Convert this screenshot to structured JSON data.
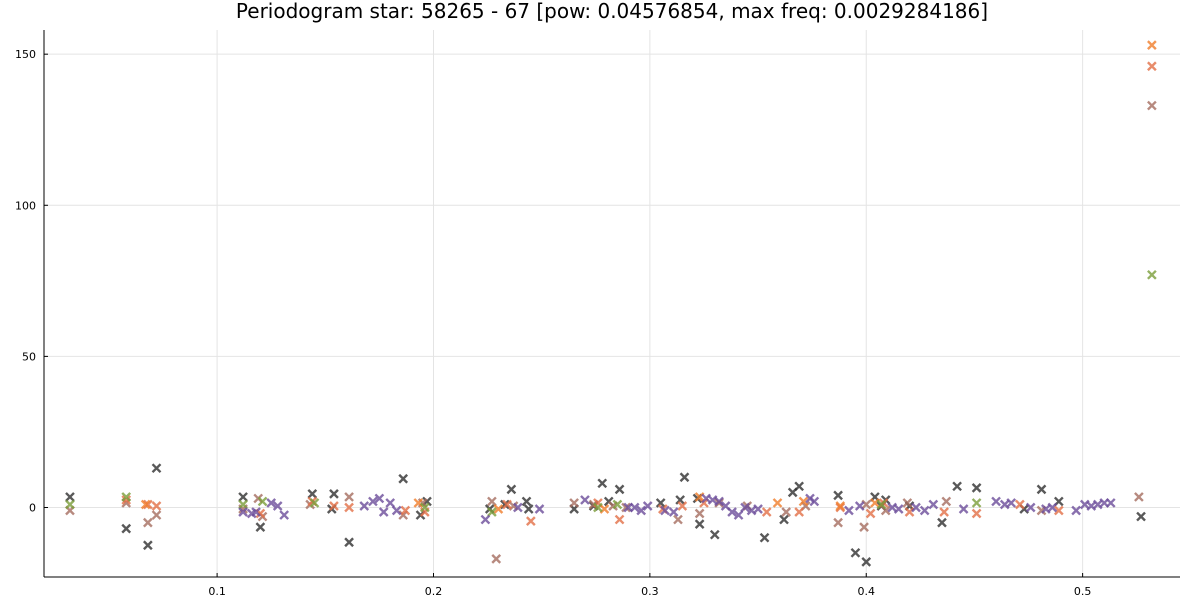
{
  "chart_data": {
    "type": "scatter",
    "title": "Periodogram star: 58265 - 67 [pow: 0.04576854, max freq: 0.0029284186]",
    "xlabel": "",
    "ylabel": "",
    "xlim": [
      0.02,
      0.545
    ],
    "ylim": [
      -23,
      158
    ],
    "x_ticks": [
      0.1,
      0.2,
      0.3,
      0.4,
      0.5
    ],
    "y_ticks": [
      0,
      50,
      100,
      150
    ],
    "x_tick_labels": [
      "0.1",
      "0.2",
      "0.3",
      "0.4",
      "0.5"
    ],
    "y_tick_labels": [
      "0",
      "50",
      "100",
      "150"
    ],
    "grid": true,
    "legend": "none",
    "marker": "x",
    "series": [
      {
        "color": "#303030",
        "x": [
          0.032,
          0.058,
          0.068,
          0.072,
          0.112,
          0.12,
          0.144,
          0.153,
          0.154,
          0.161,
          0.186,
          0.194,
          0.197,
          0.226,
          0.233,
          0.236,
          0.243,
          0.244,
          0.265,
          0.274,
          0.278,
          0.281,
          0.286,
          0.305,
          0.314,
          0.316,
          0.322,
          0.323,
          0.33,
          0.353,
          0.362,
          0.366,
          0.369,
          0.387,
          0.395,
          0.4,
          0.404,
          0.407,
          0.409,
          0.42,
          0.435,
          0.442,
          0.451,
          0.473,
          0.481,
          0.489,
          0.527
        ],
        "y": [
          3.5,
          -7,
          -12.5,
          13,
          3.5,
          -6.5,
          4.5,
          -0.5,
          4.5,
          -11.5,
          9.5,
          -2.5,
          2,
          -0.5,
          1,
          6,
          2,
          -0.5,
          -0.5,
          0.5,
          8,
          2,
          6,
          1.5,
          2.5,
          10,
          3,
          -5.5,
          -9,
          -10,
          -4,
          5,
          7,
          4,
          -15,
          -18,
          3.5,
          0.5,
          2.5,
          0.5,
          -5,
          7,
          6.5,
          -0.5,
          6,
          2,
          -3
        ]
      },
      {
        "color": "#a56d5f",
        "x": [
          0.032,
          0.058,
          0.068,
          0.072,
          0.112,
          0.119,
          0.121,
          0.143,
          0.161,
          0.186,
          0.195,
          0.227,
          0.229,
          0.237,
          0.265,
          0.274,
          0.283,
          0.289,
          0.313,
          0.323,
          0.332,
          0.345,
          0.363,
          0.372,
          0.387,
          0.399,
          0.4,
          0.409,
          0.419,
          0.437,
          0.481,
          0.526,
          0.532
        ],
        "y": [
          -1,
          1.5,
          -5,
          -2.5,
          -0.5,
          3,
          -3,
          1,
          3.5,
          -2.5,
          1.5,
          2,
          -17,
          0.5,
          1.5,
          1,
          0.5,
          0,
          -4,
          -2,
          1.5,
          0.5,
          -1.5,
          0.5,
          -5,
          -6.5,
          1,
          -1,
          1.5,
          2,
          -1,
          3.5,
          133
        ]
      },
      {
        "color": "#e26f46",
        "x": [
          0.058,
          0.068,
          0.072,
          0.12,
          0.144,
          0.154,
          0.161,
          0.187,
          0.196,
          0.234,
          0.245,
          0.276,
          0.286,
          0.306,
          0.315,
          0.325,
          0.354,
          0.369,
          0.388,
          0.402,
          0.408,
          0.42,
          0.436,
          0.451,
          0.471,
          0.489,
          0.532
        ],
        "y": [
          2.5,
          1,
          0.5,
          -2,
          2,
          0.5,
          0,
          -1,
          -1.5,
          1,
          -4.5,
          1.5,
          -4,
          -0.5,
          0.5,
          1.5,
          -1.5,
          -1.5,
          0,
          -2,
          1.5,
          -1.5,
          -1.5,
          -2,
          1,
          -1,
          146
        ]
      },
      {
        "color": "#f07d2a",
        "x": [
          0.067,
          0.193,
          0.23,
          0.279,
          0.323,
          0.359,
          0.371,
          0.388,
          0.404,
          0.532
        ],
        "y": [
          1,
          1.5,
          -0.5,
          -0.5,
          3.5,
          1.5,
          2,
          0.5,
          1.5,
          153
        ]
      },
      {
        "color": "#7a9e3a",
        "x": [
          0.032,
          0.058,
          0.112,
          0.121,
          0.145,
          0.196,
          0.227,
          0.276,
          0.285,
          0.407,
          0.451,
          0.532
        ],
        "y": [
          1,
          3.5,
          1,
          2,
          1.5,
          0,
          -1.5,
          0,
          1,
          1,
          1.5,
          77
        ]
      },
      {
        "color": "#6b4c9a",
        "x": [
          0.112,
          0.116,
          0.118,
          0.125,
          0.128,
          0.131,
          0.168,
          0.172,
          0.175,
          0.177,
          0.18,
          0.183,
          0.224,
          0.239,
          0.249,
          0.27,
          0.29,
          0.293,
          0.296,
          0.299,
          0.307,
          0.311,
          0.326,
          0.329,
          0.332,
          0.335,
          0.338,
          0.341,
          0.344,
          0.347,
          0.35,
          0.374,
          0.376,
          0.392,
          0.397,
          0.412,
          0.415,
          0.423,
          0.427,
          0.431,
          0.445,
          0.46,
          0.464,
          0.467,
          0.476,
          0.483,
          0.486,
          0.497,
          0.501,
          0.504,
          0.507,
          0.51,
          0.513
        ],
        "y": [
          -1.5,
          -2,
          -1.5,
          1.5,
          0.5,
          -2.5,
          0.5,
          2,
          3,
          -1.5,
          1.5,
          -1,
          -4,
          0,
          -0.5,
          2.5,
          0,
          0,
          -1,
          0.5,
          -1,
          -1.5,
          3,
          2.5,
          2,
          0.5,
          -1.5,
          -2.5,
          0,
          -1,
          -0.5,
          3,
          2,
          -1,
          0.5,
          0,
          -0.5,
          0,
          -1,
          1,
          -0.5,
          2,
          1,
          1.5,
          0,
          -0.5,
          0,
          -1,
          1,
          0.5,
          1,
          1.5,
          1.5
        ]
      }
    ]
  }
}
